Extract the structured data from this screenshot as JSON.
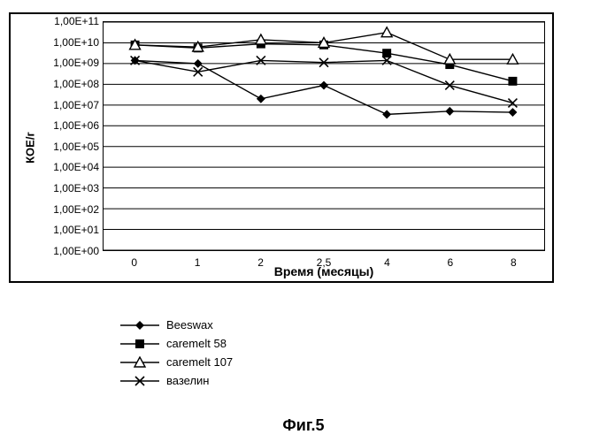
{
  "chart": {
    "type": "line",
    "ylabel": "КОЕ/г",
    "xlabel": "Время (месяцы)",
    "caption": "Фиг.5",
    "background_color": "#ffffff",
    "border_color": "#000000",
    "grid_color": "#000000",
    "x_categories": [
      "0",
      "1",
      "2",
      "2,5",
      "4",
      "6",
      "8"
    ],
    "y_tick_labels": [
      "1,00E+00",
      "1,00E+01",
      "1,00E+02",
      "1,00E+03",
      "1,00E+04",
      "1,00E+05",
      "1,00E+06",
      "1,00E+07",
      "1,00E+08",
      "1,00E+09",
      "1,00E+10",
      "1,00E+11"
    ],
    "y_is_log": true,
    "y_exponent_min": 0,
    "y_exponent_max": 11,
    "line_color": "#000000",
    "line_width": 1.4,
    "series": [
      {
        "name": "Beeswax",
        "marker": "diamond",
        "values_log10": [
          9.15,
          9.0,
          7.3,
          7.95,
          6.55,
          6.7,
          6.65
        ]
      },
      {
        "name": "caremelt 58",
        "marker": "square",
        "values_log10": [
          9.9,
          9.75,
          9.95,
          9.9,
          9.5,
          8.95,
          8.15
        ]
      },
      {
        "name": "caremelt 107",
        "marker": "triangle",
        "values_log10": [
          9.9,
          9.8,
          10.15,
          10.0,
          10.5,
          9.2,
          9.2
        ]
      },
      {
        "name": "вазелин",
        "marker": "x",
        "values_log10": [
          9.15,
          8.6,
          9.15,
          9.05,
          9.15,
          7.95,
          7.1
        ]
      }
    ]
  }
}
